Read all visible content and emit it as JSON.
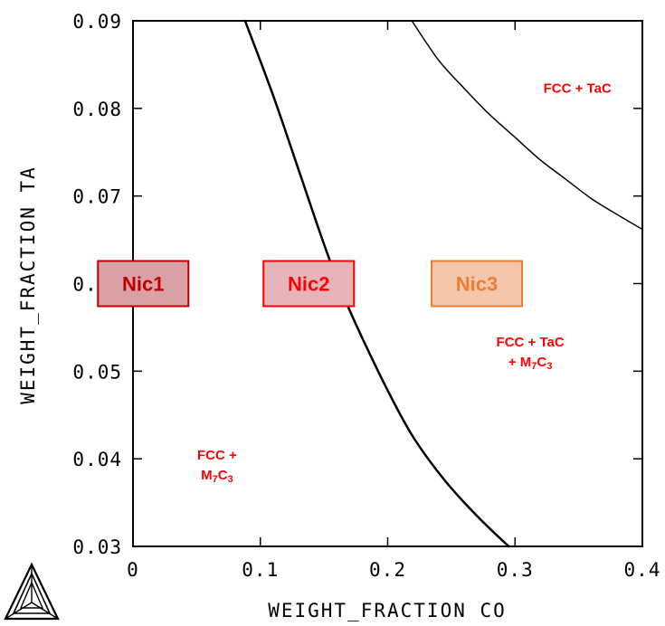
{
  "chart_data": {
    "type": "line",
    "xlabel": "WEIGHT_FRACTION CO",
    "ylabel": "WEIGHT_FRACTION TA",
    "xlim": [
      0,
      0.4
    ],
    "ylim": [
      0.03,
      0.09
    ],
    "x_ticks": [
      {
        "value": 0,
        "label": "0"
      },
      {
        "value": 0.1,
        "label": "0.1"
      },
      {
        "value": 0.2,
        "label": "0.2"
      },
      {
        "value": 0.3,
        "label": "0.3"
      },
      {
        "value": 0.4,
        "label": "0.4"
      }
    ],
    "y_ticks": [
      {
        "value": 0.03,
        "label": "0.03"
      },
      {
        "value": 0.04,
        "label": "0.04"
      },
      {
        "value": 0.05,
        "label": "0.05"
      },
      {
        "value": 0.06,
        "label": "0.06"
      },
      {
        "value": 0.07,
        "label": "0.07"
      },
      {
        "value": 0.08,
        "label": "0.08"
      },
      {
        "value": 0.09,
        "label": "0.09"
      }
    ],
    "grid": false,
    "series": [
      {
        "x": [
          0.088,
          0.11,
          0.13,
          0.15,
          0.165,
          0.18,
          0.2,
          0.22,
          0.245,
          0.27,
          0.295
        ],
        "y": [
          0.09,
          0.0815,
          0.073,
          0.0645,
          0.0587,
          0.0538,
          0.0478,
          0.0425,
          0.0375,
          0.0335,
          0.03
        ],
        "color": "#000000",
        "width": 2.5
      },
      {
        "x": [
          0.219,
          0.24,
          0.26,
          0.28,
          0.3,
          0.32,
          0.34,
          0.36,
          0.38,
          0.4
        ],
        "y": [
          0.09,
          0.0855,
          0.0823,
          0.0793,
          0.0767,
          0.0741,
          0.0719,
          0.0697,
          0.0679,
          0.0662
        ],
        "color": "#000000",
        "width": 1.5
      }
    ],
    "regions": [
      {
        "lines": [
          "FCC + TaC"
        ],
        "x": 0.349,
        "y": 0.0818
      },
      {
        "lines": [
          "FCC + TaC",
          "+ M7C3"
        ],
        "x": 0.312,
        "y": 0.0528
      },
      {
        "lines": [
          "FCC +",
          "M7C3"
        ],
        "x": 0.066,
        "y": 0.0399
      }
    ],
    "samples": [
      {
        "label": "Nic1",
        "x": 0.008,
        "y": 0.06,
        "fill": "#d9a0a6",
        "stroke": "#c00000",
        "text_color": "#c00000"
      },
      {
        "label": "Nic2",
        "x": 0.138,
        "y": 0.06,
        "fill": "#e8b4bb",
        "stroke": "#ff0000",
        "text_color": "#ff0000"
      },
      {
        "label": "Nic3",
        "x": 0.27,
        "y": 0.06,
        "fill": "#f4c7ad",
        "stroke": "#ed7d31",
        "text_color": "#ed7d31"
      }
    ]
  }
}
